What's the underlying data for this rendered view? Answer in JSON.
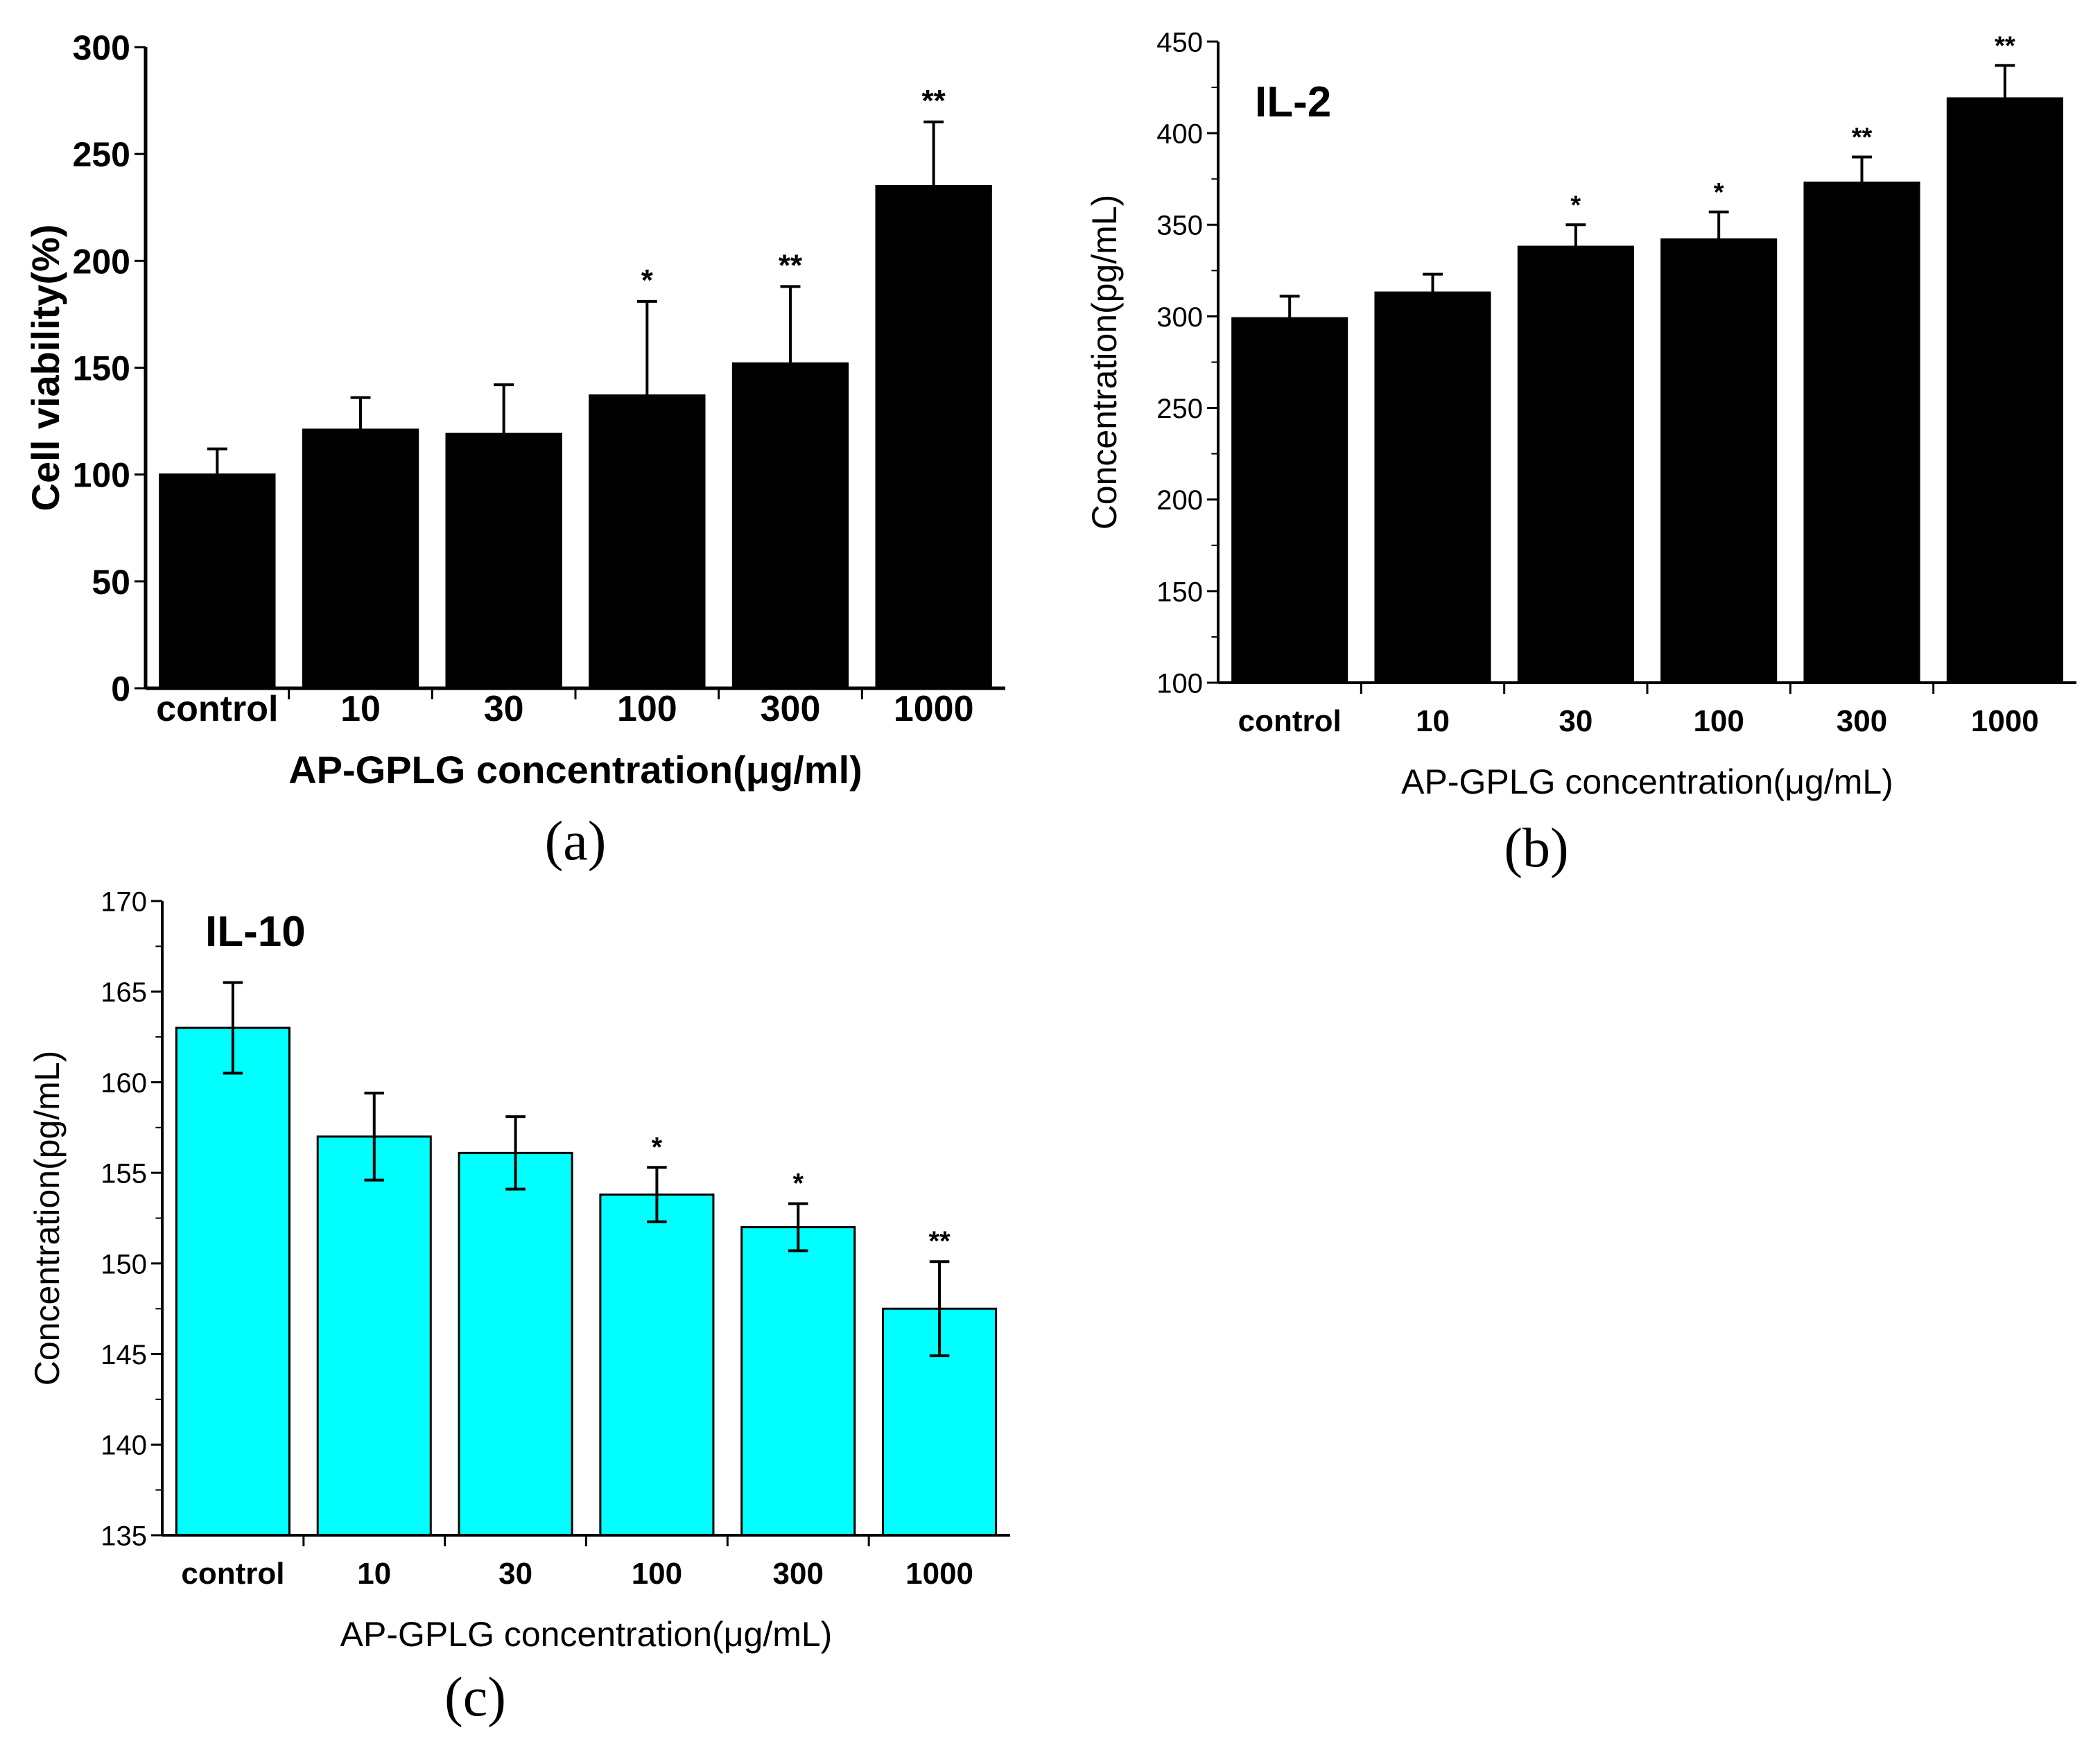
{
  "figure": {
    "background": "#ffffff"
  },
  "chart_data": [
    {
      "id": "a",
      "type": "bar",
      "panel_label": "(a)",
      "title": "",
      "xlabel": "AP-GPLG concentration(μg/ml)",
      "ylabel": "Cell viability(%)",
      "categories": [
        "control",
        "10",
        "30",
        "100",
        "300",
        "1000"
      ],
      "values": [
        100,
        121,
        119,
        137,
        152,
        235
      ],
      "errors": [
        12,
        15,
        23,
        44,
        36,
        30
      ],
      "significance": [
        "",
        "",
        "",
        "*",
        "**",
        "**"
      ],
      "ylim": [
        0,
        300
      ],
      "yticks": [
        "0",
        "50",
        "100",
        "150",
        "200",
        "250",
        "300"
      ],
      "bar_color": "#000000",
      "grid": false,
      "legend": "none"
    },
    {
      "id": "b",
      "type": "bar",
      "panel_label": "(b)",
      "title": "IL-2",
      "xlabel": "AP-GPLG  concentration(μg/mL)",
      "ylabel": "Concentration(pg/mL)",
      "categories": [
        "control",
        "10",
        "30",
        "100",
        "300",
        "1000"
      ],
      "values": [
        299,
        313,
        338,
        342,
        373,
        419
      ],
      "errors": [
        12,
        10,
        12,
        15,
        14,
        18
      ],
      "significance": [
        "",
        "",
        "*",
        "*",
        "**",
        "**"
      ],
      "ylim": [
        100,
        450
      ],
      "yticks": [
        "100",
        "150",
        "200",
        "250",
        "300",
        "350",
        "400",
        "450"
      ],
      "bar_color": "#000000",
      "grid": false,
      "legend": "none"
    },
    {
      "id": "c",
      "type": "bar",
      "panel_label": "(c)",
      "title": "IL-10",
      "xlabel": "AP-GPLG  concentration(μg/mL)",
      "ylabel": "Concentration(pg/mL)",
      "categories": [
        "control",
        "10",
        "30",
        "100",
        "300",
        "1000"
      ],
      "values": [
        163,
        157,
        156.1,
        153.8,
        152,
        147.5
      ],
      "errors": [
        2.5,
        2.4,
        2.0,
        1.5,
        1.3,
        2.6
      ],
      "significance": [
        "",
        "",
        "",
        "*",
        "*",
        "**"
      ],
      "ylim": [
        135,
        170
      ],
      "yticks": [
        "135",
        "140",
        "145",
        "150",
        "155",
        "160",
        "165",
        "170"
      ],
      "bar_color": "#00ffff",
      "grid": false,
      "legend": "none"
    }
  ]
}
